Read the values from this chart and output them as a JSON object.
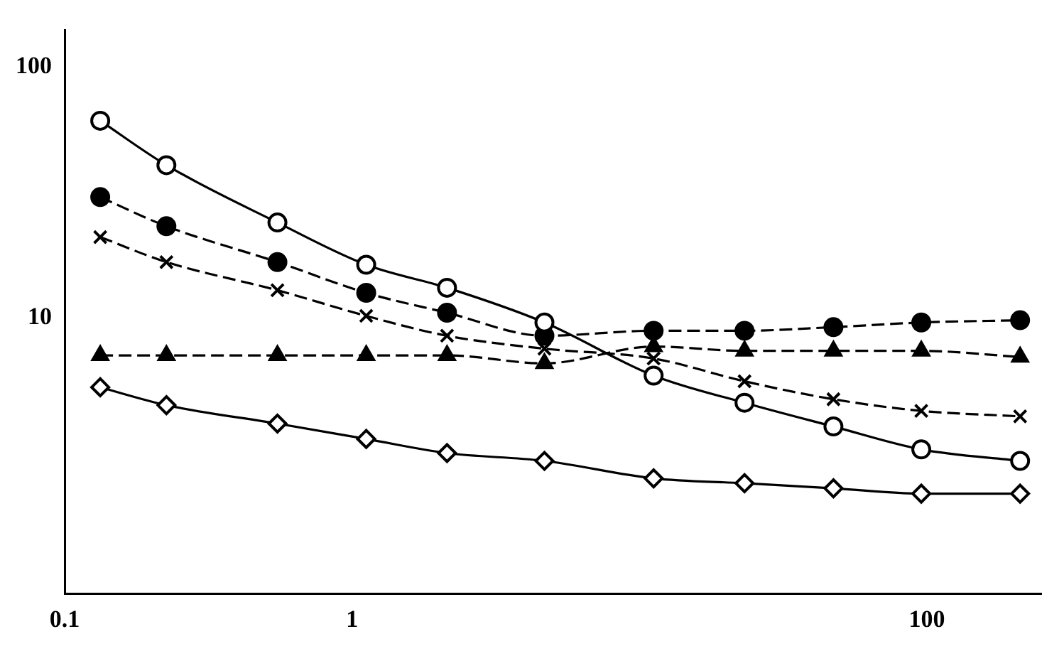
{
  "chart_data": {
    "type": "line",
    "log": "xy",
    "grid": false,
    "legend": false,
    "x": [
      0.133,
      0.226,
      0.55,
      1.12,
      2.14,
      4.67,
      11.2,
      23.2,
      47.3,
      95.6,
      211
    ],
    "xlim": [
      0.1,
      250
    ],
    "xticks": [
      0.1,
      1,
      100
    ],
    "ylim": [
      0.8,
      140
    ],
    "yticks": [
      10,
      100
    ],
    "series": [
      {
        "color": "#000000",
        "marker": "circle",
        "line_style": "solid",
        "values": [
          61,
          40.6,
          24,
          16.3,
          13.2,
          9.6,
          5.9,
          4.6,
          3.7,
          3.0,
          2.7
        ]
      },
      {
        "color": "#000000",
        "marker": "circle",
        "line_style": "dashed",
        "values": [
          30.3,
          23.2,
          16.7,
          12.6,
          10.5,
          8.5,
          8.9,
          8.9,
          9.2,
          9.6,
          9.8
        ]
      },
      {
        "color": "#000000",
        "marker": "cross",
        "line_style": "dashed",
        "values": [
          21,
          16.7,
          12.9,
          10.2,
          8.5,
          7.55,
          6.9,
          5.6,
          4.75,
          4.27,
          4.06
        ]
      },
      {
        "color": "#000000",
        "marker": "triangle",
        "line_style": "dashed",
        "values": [
          7.1,
          7.1,
          7.1,
          7.1,
          7.1,
          6.6,
          7.7,
          7.4,
          7.4,
          7.4,
          7.0
        ]
      },
      {
        "color": "#000000",
        "marker": "diamond",
        "line_style": "solid",
        "values": [
          5.3,
          4.5,
          3.8,
          3.3,
          2.9,
          2.7,
          2.3,
          2.2,
          2.1,
          2.0,
          2.0
        ]
      }
    ]
  }
}
